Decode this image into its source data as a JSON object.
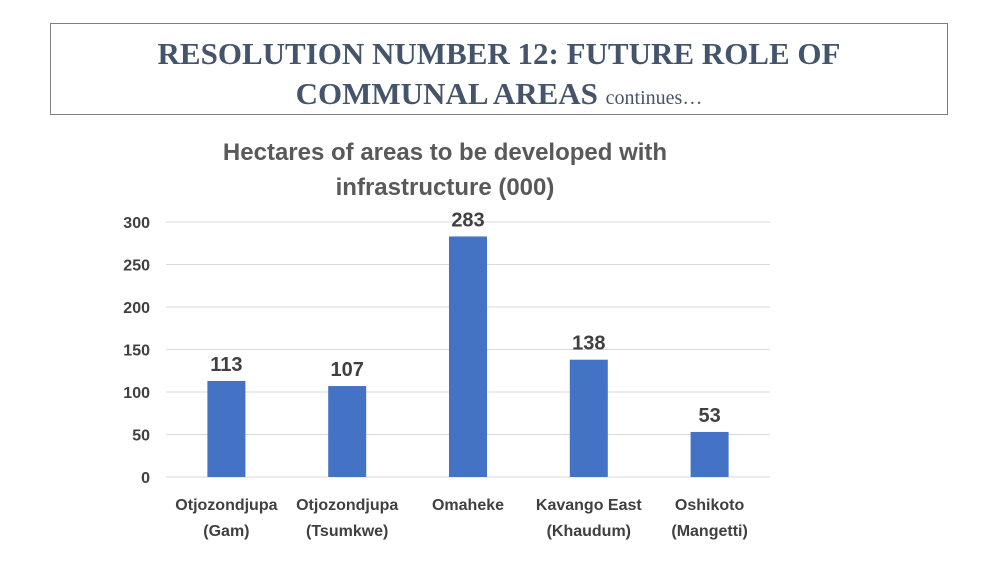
{
  "slide": {
    "title_line1": "RESOLUTION NUMBER 12: FUTURE  ROLE OF",
    "title_line2": "COMMUNAL AREAS",
    "title_suffix": "continues…"
  },
  "chart_data": {
    "type": "bar",
    "title_lines": [
      "Hectares of areas to be developed with",
      "infrastructure (000)"
    ],
    "categories": [
      [
        "Otjozondjupa",
        "(Gam)"
      ],
      [
        "Otjozondjupa",
        "(Tsumkwe)"
      ],
      [
        "Omaheke"
      ],
      [
        "Kavango East",
        "(Khaudum)"
      ],
      [
        "Oshikoto",
        "(Mangetti)"
      ]
    ],
    "values": [
      113,
      107,
      283,
      138,
      53
    ],
    "data_labels": [
      "113",
      "107",
      "283",
      "138",
      "53"
    ],
    "ylim": [
      0,
      300
    ],
    "yticks": [
      0,
      50,
      100,
      150,
      200,
      250,
      300
    ],
    "grid": true,
    "legend": "none",
    "bar_color": "#4472c4",
    "grid_color": "#d9d9d9"
  }
}
